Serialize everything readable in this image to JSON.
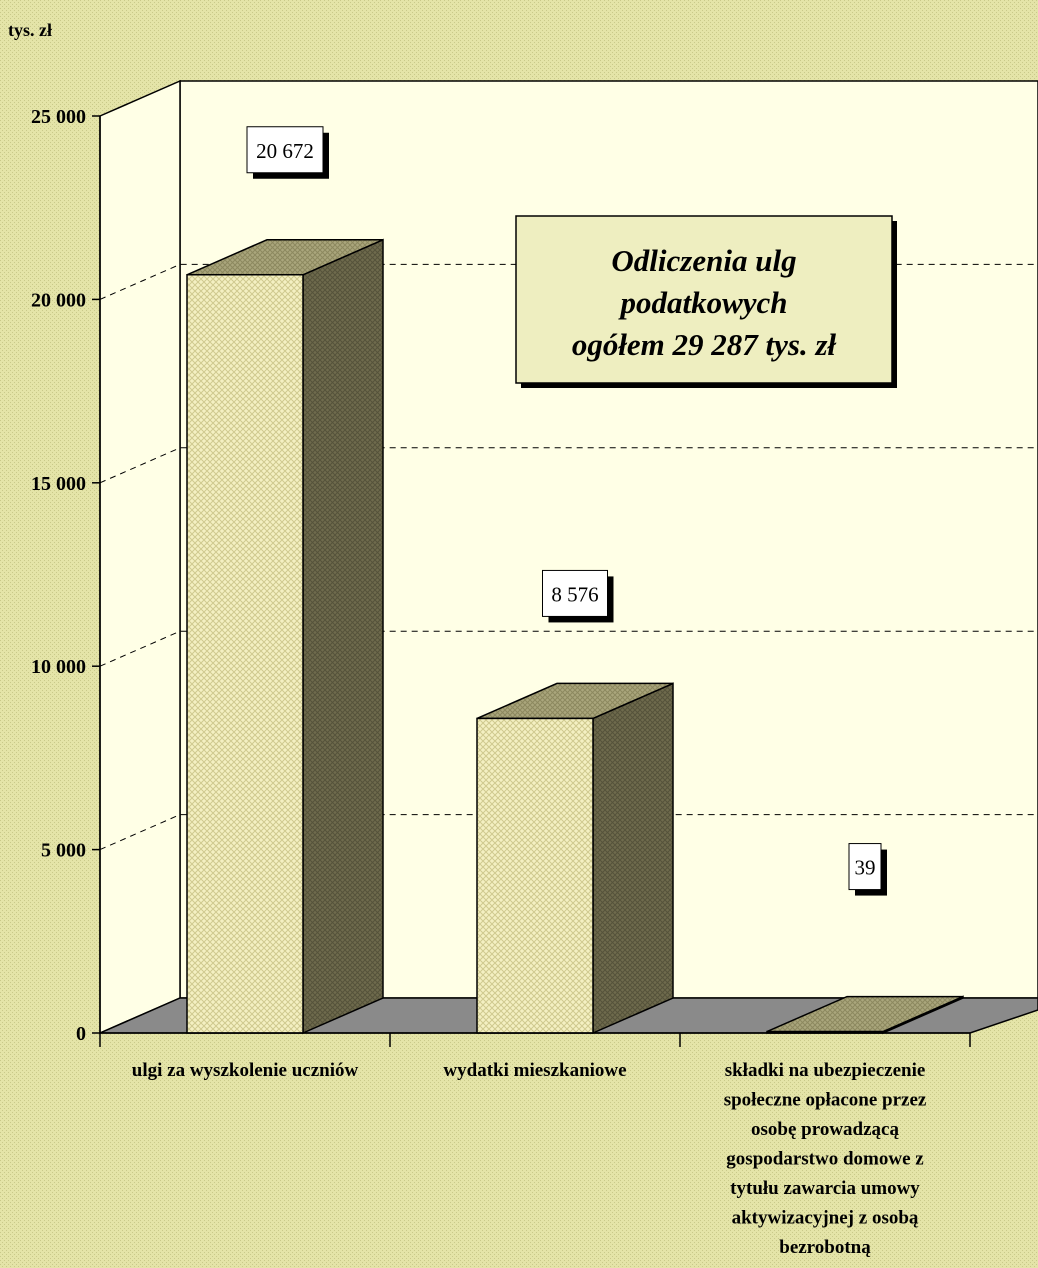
{
  "chart_data": {
    "type": "bar",
    "unit_label": "tys. zł",
    "categories": [
      [
        "ulgi za wyszkolenie uczniów"
      ],
      [
        "wydatki mieszkaniowe"
      ],
      [
        "składki na ubezpieczenie",
        "społeczne opłacone przez",
        "osobę prowadzącą",
        "gospodarstwo domowe z",
        "tytułu zawarcia umowy",
        "aktywizacyjnej z osobą",
        "bezrobotną"
      ]
    ],
    "values": [
      20672,
      8576,
      39
    ],
    "value_labels": [
      "20 672",
      "8 576",
      "39"
    ],
    "ylim": [
      0,
      25000
    ],
    "yticks": [
      0,
      5000,
      10000,
      15000,
      20000,
      25000
    ],
    "ytick_labels": [
      "0",
      "5 000",
      "10 000",
      "15 000",
      "20 000",
      "25 000"
    ],
    "gridlines": true,
    "annotation": [
      "Odliczenia ulg",
      "podatkowych",
      "ogółem 29 287 tys. zł"
    ],
    "colors": {
      "background": "#e3e3a6",
      "plot_area": "#ffffe6",
      "floor": "#8a8a8a",
      "bar_front": "#f2eebe",
      "bar_top": "#a8a47a",
      "bar_side": "#6e6a4c",
      "note_box": "#eeeec0"
    }
  }
}
